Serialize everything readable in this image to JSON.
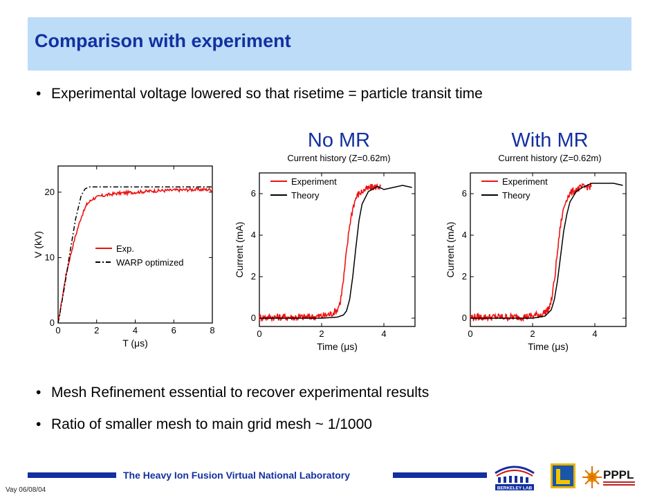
{
  "slide": {
    "title": "Comparison with experiment",
    "bullets": [
      "Experimental voltage lowered so that risetime = particle transit time",
      "Mesh Refinement essential to recover experimental results",
      "Ratio of smaller mesh to main grid mesh ~ 1/1000"
    ],
    "bullet_char": "•",
    "footer": "The Heavy Ion Fusion Virtual National Laboratory",
    "date": "Vay 06/08/04",
    "logos": [
      "BERKELEY LAB",
      "PPPL"
    ]
  },
  "colors": {
    "title_bg": "#bcdcf8",
    "title_text": "#1330a0",
    "experiment": "#ee1111",
    "theory": "#000000",
    "footer": "#1330a0"
  },
  "chart_data": [
    {
      "type": "line",
      "title": "",
      "xlabel": "T (μs)",
      "ylabel": "V (kV)",
      "xlim": [
        0,
        8
      ],
      "ylim": [
        0,
        24
      ],
      "xticks": [
        "0",
        "2",
        "4",
        "6",
        "8"
      ],
      "yticks": [
        "0",
        "10",
        "20"
      ],
      "legend_position": "center-right",
      "series": [
        {
          "name": "Exp.",
          "style": "solid",
          "x": [
            0,
            0.2,
            0.4,
            0.6,
            0.8,
            1.0,
            1.2,
            1.5,
            1.8,
            2.2,
            2.6,
            3.0,
            4.0,
            5.0,
            6.0,
            7.0,
            8.0
          ],
          "y": [
            0,
            3.5,
            7.2,
            9.8,
            12.2,
            14.3,
            16.2,
            18.2,
            19.0,
            19.4,
            19.6,
            19.8,
            20.0,
            20.2,
            20.3,
            20.4,
            20.4
          ]
        },
        {
          "name": "WARP optimized",
          "style": "dash-dot",
          "x": [
            0,
            0.3,
            0.6,
            0.9,
            1.2,
            1.4,
            1.6,
            2.0,
            4.0,
            6.0,
            8.0
          ],
          "y": [
            0,
            5.0,
            10.5,
            15.8,
            19.5,
            20.5,
            20.8,
            20.8,
            20.8,
            20.8,
            20.8
          ]
        }
      ]
    },
    {
      "type": "line",
      "title": "No MR",
      "subtitle": "Current history (Z=0.62m)",
      "xlabel": "Time (μs)",
      "ylabel": "Current (mA)",
      "xlim": [
        0,
        5
      ],
      "ylim": [
        -0.4,
        7
      ],
      "xticks": [
        "0",
        "2",
        "4"
      ],
      "yticks": [
        "0",
        "2",
        "4",
        "6"
      ],
      "legend_position": "top-left",
      "series": [
        {
          "name": "Experiment",
          "style": "solid",
          "x": [
            0,
            0.5,
            1.0,
            1.5,
            2.0,
            2.3,
            2.5,
            2.6,
            2.7,
            2.8,
            2.9,
            3.0,
            3.1,
            3.2,
            3.4,
            3.6,
            3.8,
            3.9
          ],
          "y": [
            0.05,
            0.05,
            0.05,
            0.05,
            0.1,
            0.2,
            0.4,
            0.8,
            1.8,
            3.2,
            4.5,
            5.3,
            5.8,
            6.0,
            6.2,
            6.3,
            6.35,
            6.35
          ]
        },
        {
          "name": "Theory",
          "style": "solid",
          "x": [
            0,
            1.0,
            2.0,
            2.5,
            2.7,
            2.8,
            2.9,
            3.0,
            3.1,
            3.2,
            3.3,
            3.5,
            3.8,
            4.0,
            4.3,
            4.6,
            4.9
          ],
          "y": [
            0,
            0,
            0,
            0.05,
            0.15,
            0.35,
            0.9,
            2.0,
            3.4,
            4.7,
            5.5,
            6.1,
            6.35,
            6.2,
            6.3,
            6.4,
            6.3
          ]
        }
      ]
    },
    {
      "type": "line",
      "title": "With MR",
      "subtitle": "Current history (Z=0.62m)",
      "xlabel": "Time (μs)",
      "ylabel": "Current (mA)",
      "xlim": [
        0,
        5
      ],
      "ylim": [
        -0.4,
        7
      ],
      "xticks": [
        "0",
        "2",
        "4"
      ],
      "yticks": [
        "0",
        "2",
        "4",
        "6"
      ],
      "legend_position": "top-left",
      "series": [
        {
          "name": "Experiment",
          "style": "solid",
          "x": [
            0,
            0.5,
            1.0,
            1.5,
            2.0,
            2.3,
            2.5,
            2.6,
            2.7,
            2.8,
            2.9,
            3.0,
            3.1,
            3.2,
            3.4,
            3.6,
            3.8,
            3.9
          ],
          "y": [
            0.05,
            0.05,
            0.05,
            0.05,
            0.1,
            0.2,
            0.4,
            0.8,
            1.8,
            3.2,
            4.5,
            5.3,
            5.8,
            6.0,
            6.2,
            6.3,
            6.35,
            6.35
          ]
        },
        {
          "name": "Theory",
          "style": "solid",
          "x": [
            0,
            1.0,
            2.0,
            2.4,
            2.6,
            2.7,
            2.8,
            2.9,
            3.0,
            3.1,
            3.2,
            3.4,
            3.6,
            3.9,
            4.3,
            4.6,
            4.9
          ],
          "y": [
            0,
            0,
            0,
            0.1,
            0.4,
            0.9,
            1.8,
            3.0,
            4.2,
            5.0,
            5.6,
            6.1,
            6.3,
            6.5,
            6.5,
            6.5,
            6.4
          ]
        }
      ]
    }
  ]
}
